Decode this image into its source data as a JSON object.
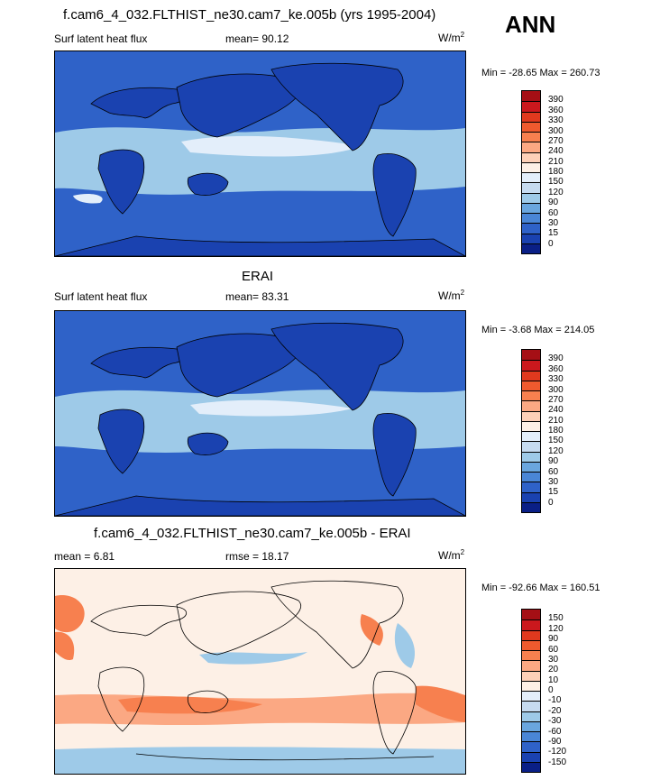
{
  "season": "ANN",
  "panels": [
    {
      "title": "f.cam6_4_032.FLTHIST_ne30.cam7_ke.005b (yrs 1995-2004)",
      "left_label": "Surf latent heat flux",
      "center_label": "mean=  90.12",
      "units_base": "W/m",
      "units_sup": "2",
      "minmax": "Min = -28.65 Max = 260.73",
      "colorbar_labels": [
        "390",
        "360",
        "330",
        "300",
        "270",
        "240",
        "210",
        "180",
        "150",
        "120",
        "90",
        "60",
        "30",
        "15",
        "0"
      ],
      "colorbar_colors": [
        "#a50f15",
        "#cb181d",
        "#e0391e",
        "#ef5a2e",
        "#f7804f",
        "#fba883",
        "#fdd0b8",
        "#fdf0e6",
        "#e3eefa",
        "#c6dbf0",
        "#9ecae8",
        "#6aa6de",
        "#4a86d6",
        "#2f62c8",
        "#1a42b0",
        "#0a1f86"
      ]
    },
    {
      "title": "ERAI",
      "left_label": "Surf latent heat flux",
      "center_label": "mean=  83.31",
      "units_base": "W/m",
      "units_sup": "2",
      "minmax": "Min =  -3.68 Max = 214.05",
      "colorbar_labels": [
        "390",
        "360",
        "330",
        "300",
        "270",
        "240",
        "210",
        "180",
        "150",
        "120",
        "90",
        "60",
        "30",
        "15",
        "0"
      ],
      "colorbar_colors": [
        "#a50f15",
        "#cb181d",
        "#e0391e",
        "#ef5a2e",
        "#f7804f",
        "#fba883",
        "#fdd0b8",
        "#fdf0e6",
        "#e3eefa",
        "#c6dbf0",
        "#9ecae8",
        "#6aa6de",
        "#4a86d6",
        "#2f62c8",
        "#1a42b0",
        "#0a1f86"
      ]
    },
    {
      "title": "f.cam6_4_032.FLTHIST_ne30.cam7_ke.005b - ERAI",
      "left_label": "mean =   6.81",
      "center_label": "rmse =  18.17",
      "units_base": "W/m",
      "units_sup": "2",
      "minmax": "Min = -92.66 Max = 160.51",
      "colorbar_labels": [
        "150",
        "120",
        "90",
        "60",
        "30",
        "20",
        "10",
        "0",
        "-10",
        "-20",
        "-30",
        "-60",
        "-90",
        "-120",
        "-150"
      ],
      "colorbar_colors": [
        "#a50f15",
        "#cb181d",
        "#e0391e",
        "#ef5a2e",
        "#f7804f",
        "#fba883",
        "#fdd0b8",
        "#fdf0e6",
        "#e3eefa",
        "#c6dbf0",
        "#9ecae8",
        "#6aa6de",
        "#4a86d6",
        "#2f62c8",
        "#1a42b0",
        "#0a1f86"
      ]
    }
  ],
  "map_colors": {
    "ocean_mid": "#2f62c8",
    "ocean_warm": "#9ecae8",
    "ocean_pale": "#e3eefa",
    "land": "#1a42b0",
    "diff_bg": "#fdf0e6",
    "diff_pos": "#f7804f",
    "diff_pos_light": "#fba883",
    "diff_neg": "#9ecae8",
    "coast": "#000000"
  }
}
